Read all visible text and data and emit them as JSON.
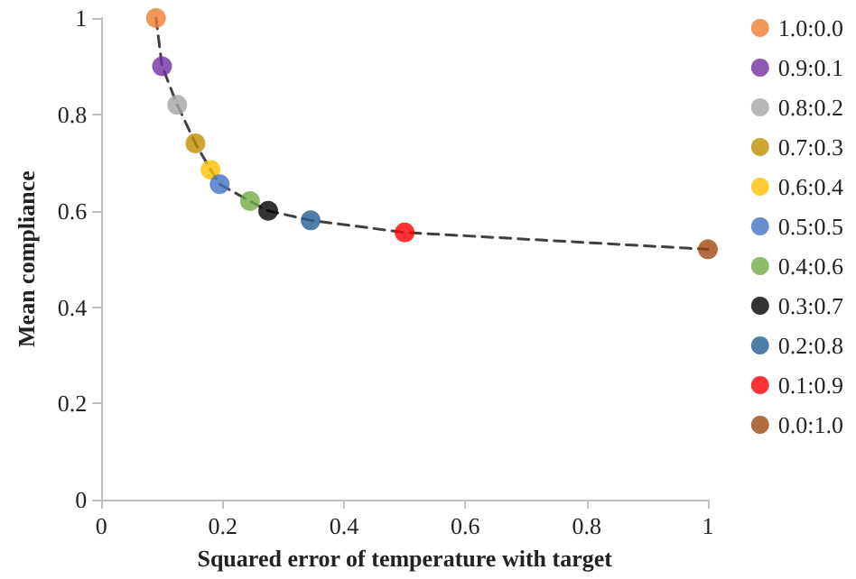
{
  "chart_data": {
    "type": "scatter",
    "xlabel": "Squared error of temperature with target",
    "ylabel": "Mean compliance",
    "xlim": [
      0,
      1
    ],
    "xticks": [
      0,
      0.2,
      0.4,
      0.6,
      0.8,
      1
    ],
    "ylim": [
      0,
      1
    ],
    "yticks": [
      0,
      0.2,
      0.4,
      0.6,
      0.8,
      1
    ],
    "grid": false,
    "legend": "right",
    "marker": "circle",
    "series": [
      {
        "type": "line",
        "color": "#404040",
        "line_style": "dashed",
        "marker": "none",
        "x": [
          0.09,
          0.1,
          0.125,
          0.155,
          0.18,
          0.195,
          0.245,
          0.275,
          0.345,
          0.5,
          1.0
        ],
        "values": [
          1.0,
          0.9,
          0.82,
          0.74,
          0.685,
          0.655,
          0.62,
          0.6,
          0.58,
          0.555,
          0.52
        ]
      },
      {
        "name": "1.0:0.0",
        "color": "#ed7d31",
        "x": [
          0.09
        ],
        "values": [
          1.0
        ]
      },
      {
        "name": "0.9:0.1",
        "color": "#7030a0",
        "x": [
          0.1
        ],
        "values": [
          0.9
        ]
      },
      {
        "name": "0.8:0.2",
        "color": "#a5a5a5",
        "x": [
          0.125
        ],
        "values": [
          0.82
        ]
      },
      {
        "name": "0.7:0.3",
        "color": "#bf9000",
        "x": [
          0.155
        ],
        "values": [
          0.74
        ]
      },
      {
        "name": "0.6:0.4",
        "color": "#ffc000",
        "x": [
          0.18
        ],
        "values": [
          0.685
        ]
      },
      {
        "name": "0.5:0.5",
        "color": "#4472c4",
        "x": [
          0.195
        ],
        "values": [
          0.655
        ]
      },
      {
        "name": "0.4:0.6",
        "color": "#70ad47",
        "x": [
          0.245
        ],
        "values": [
          0.62
        ]
      },
      {
        "name": "0.3:0.7",
        "color": "#000000",
        "x": [
          0.275
        ],
        "values": [
          0.6
        ]
      },
      {
        "name": "0.2:0.8",
        "color": "#255e91",
        "x": [
          0.345
        ],
        "values": [
          0.58
        ]
      },
      {
        "name": "0.1:0.9",
        "color": "#ff0000",
        "x": [
          0.5
        ],
        "values": [
          0.555
        ]
      },
      {
        "name": "0.0:1.0",
        "color": "#9e480e",
        "x": [
          1.0
        ],
        "values": [
          0.52
        ]
      }
    ]
  }
}
